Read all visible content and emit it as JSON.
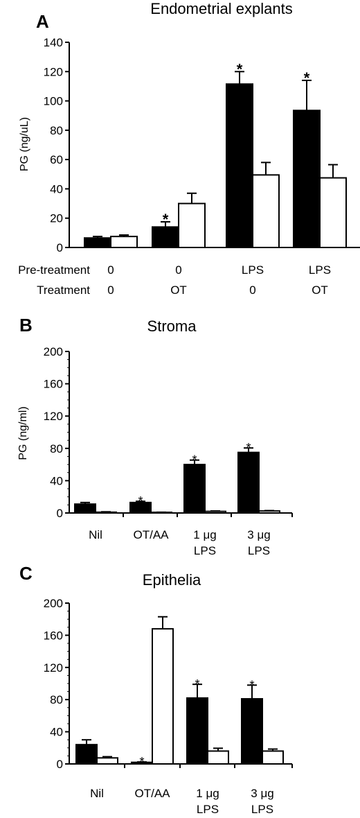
{
  "colors": {
    "series_filled": "#000000",
    "series_open": "#ffffff",
    "axis": "#000000"
  },
  "chart_data": [
    {
      "type": "bar",
      "panel": "A",
      "title": "Endometrial explants",
      "ylabel": "PG (ng/uL)",
      "ylim": [
        0,
        140
      ],
      "yticks": [
        0,
        20,
        40,
        60,
        80,
        100,
        120,
        140
      ],
      "row_labels": [
        "Pre-treatment",
        "Treatment"
      ],
      "categories": [
        [
          "0",
          "0"
        ],
        [
          "0",
          "OT"
        ],
        [
          "LPS",
          "0"
        ],
        [
          "LPS",
          "OT"
        ]
      ],
      "series": [
        {
          "fill": "black",
          "values": [
            6.5,
            14,
            111.5,
            93.5
          ],
          "errors": [
            1,
            3.5,
            8.5,
            20.5
          ],
          "significant": [
            false,
            true,
            true,
            true
          ]
        },
        {
          "fill": "white",
          "values": [
            7.5,
            30,
            49.5,
            47.5
          ],
          "errors": [
            1,
            7,
            8.5,
            9
          ],
          "significant": [
            false,
            false,
            false,
            false
          ]
        }
      ],
      "sig_marker": "*"
    },
    {
      "type": "bar",
      "panel": "B",
      "title": "Stroma",
      "ylabel": "PG (ng/ml)",
      "ylim": [
        0,
        200
      ],
      "yticks": [
        0,
        40,
        80,
        120,
        160,
        200
      ],
      "categories": [
        [
          "Nil"
        ],
        [
          "OT/AA"
        ],
        [
          "1 μg",
          "LPS"
        ],
        [
          "3 μg",
          "LPS"
        ]
      ],
      "series": [
        {
          "fill": "black",
          "values": [
            11,
            13,
            60,
            75
          ],
          "errors": [
            2,
            1.5,
            5.5,
            5.5
          ],
          "significant": [
            false,
            true,
            true,
            true
          ]
        },
        {
          "fill": "white",
          "values": [
            1,
            0.5,
            2,
            2.5
          ],
          "errors": [
            0.5,
            0.5,
            0.5,
            0.5
          ],
          "significant": [
            false,
            false,
            false,
            false
          ]
        }
      ],
      "sig_marker": "*"
    },
    {
      "type": "bar",
      "panel": "C",
      "title": "Epithelia",
      "ylabel": "",
      "ylim": [
        0,
        200
      ],
      "yticks": [
        0,
        40,
        80,
        120,
        160,
        200
      ],
      "categories": [
        [
          "Nil"
        ],
        [
          "OT/AA"
        ],
        [
          "1 μg",
          "LPS"
        ],
        [
          "3 μg",
          "LPS"
        ]
      ],
      "series": [
        {
          "fill": "black",
          "values": [
            24,
            2,
            82,
            81
          ],
          "errors": [
            6,
            0.5,
            17,
            17
          ],
          "significant": [
            false,
            true,
            true,
            true
          ]
        },
        {
          "fill": "white",
          "values": [
            7.5,
            168,
            16,
            16
          ],
          "errors": [
            1.5,
            15,
            3.5,
            2.5
          ],
          "significant": [
            false,
            false,
            false,
            false
          ]
        }
      ],
      "sig_marker": "*"
    }
  ]
}
